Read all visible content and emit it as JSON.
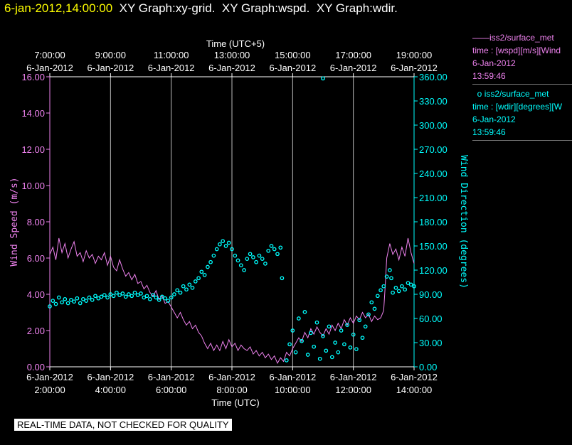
{
  "header": {
    "timestamp": "6-jan-2012,14:00:00",
    "graphs": [
      "XY Graph:xy-grid.",
      "XY Graph:wspd.",
      "XY Graph:wdir."
    ]
  },
  "legend": [
    {
      "marker": "——",
      "name": "iss2/surface_met",
      "var": "time : [wspd][m/s][Wind",
      "date": "6-Jan-2012",
      "time": "13:59:46",
      "color": "#ee82ee"
    },
    {
      "marker": "o",
      "name": "iss2/surface_met",
      "var": "time : [wdir][degrees][W",
      "date": "6-Jan-2012",
      "time": "13:59:46",
      "color": "#00ffff"
    }
  ],
  "quality_note": "REAL-TIME DATA, NOT CHECKED FOR QUALITY",
  "chart_data": {
    "type": "line",
    "top_axis": {
      "title": "Time (UTC+5)",
      "ticks": [
        {
          "time": "7:00:00",
          "date": "6-Jan-2012"
        },
        {
          "time": "9:00:00",
          "date": "6-Jan-2012"
        },
        {
          "time": "11:00:00",
          "date": "6-Jan-2012"
        },
        {
          "time": "13:00:00",
          "date": "6-Jan-2012"
        },
        {
          "time": "15:00:00",
          "date": "6-Jan-2012"
        },
        {
          "time": "17:00:00",
          "date": "6-Jan-2012"
        },
        {
          "time": "19:00:00",
          "date": "6-Jan-2012"
        }
      ]
    },
    "bottom_axis": {
      "title": "Time (UTC)",
      "xlim": [
        2,
        14
      ],
      "ticks": [
        {
          "x": 2,
          "date": "6-Jan-2012",
          "time": "2:00:00"
        },
        {
          "x": 4,
          "date": "6-Jan-2012",
          "time": "4:00:00"
        },
        {
          "x": 6,
          "date": "6-Jan-2012",
          "time": "6:00:00"
        },
        {
          "x": 8,
          "date": "6-Jan-2012",
          "time": "8:00:00"
        },
        {
          "x": 10,
          "date": "6-Jan-2012",
          "time": "10:00:00"
        },
        {
          "x": 12,
          "date": "6-Jan-2012",
          "time": "12:00:00"
        },
        {
          "x": 14,
          "date": "6-Jan-2012",
          "time": "14:00:00"
        }
      ]
    },
    "y_left": {
      "title": "Wind Speed (m/s)",
      "ylim": [
        0,
        16
      ],
      "ticks": [
        "0.00",
        "2.00",
        "4.00",
        "6.00",
        "8.00",
        "10.00",
        "12.00",
        "14.00",
        "16.00"
      ]
    },
    "y_right": {
      "title": "Wind Direction (degrees)",
      "ylim": [
        0,
        360
      ],
      "ticks": [
        "0.00",
        "30.00",
        "60.00",
        "90.00",
        "120.00",
        "150.00",
        "180.00",
        "210.00",
        "240.00",
        "270.00",
        "300.00",
        "330.00",
        "360.00"
      ]
    },
    "grid": "vertical",
    "series": [
      {
        "name": "iss2/surface_met",
        "axis": "left",
        "style": "line",
        "color": "#ee82ee",
        "points": [
          [
            2.0,
            6.2
          ],
          [
            2.1,
            6.6
          ],
          [
            2.2,
            5.9
          ],
          [
            2.3,
            7.1
          ],
          [
            2.4,
            6.3
          ],
          [
            2.5,
            6.8
          ],
          [
            2.6,
            6.0
          ],
          [
            2.7,
            6.5
          ],
          [
            2.8,
            6.9
          ],
          [
            2.9,
            6.1
          ],
          [
            3.0,
            6.3
          ],
          [
            3.1,
            5.8
          ],
          [
            3.2,
            6.4
          ],
          [
            3.3,
            6.0
          ],
          [
            3.4,
            6.2
          ],
          [
            3.5,
            5.7
          ],
          [
            3.6,
            6.1
          ],
          [
            3.7,
            5.9
          ],
          [
            3.8,
            6.3
          ],
          [
            3.9,
            5.6
          ],
          [
            4.0,
            6.1
          ],
          [
            4.1,
            5.5
          ],
          [
            4.2,
            5.3
          ],
          [
            4.3,
            5.9
          ],
          [
            4.4,
            5.4
          ],
          [
            4.5,
            5.0
          ],
          [
            4.6,
            5.2
          ],
          [
            4.7,
            4.8
          ],
          [
            4.8,
            5.1
          ],
          [
            4.9,
            4.6
          ],
          [
            5.0,
            4.7
          ],
          [
            5.1,
            4.3
          ],
          [
            5.2,
            4.5
          ],
          [
            5.3,
            4.1
          ],
          [
            5.4,
            3.9
          ],
          [
            5.5,
            4.2
          ],
          [
            5.6,
            3.7
          ],
          [
            5.7,
            3.9
          ],
          [
            5.8,
            3.5
          ],
          [
            5.9,
            3.6
          ],
          [
            6.0,
            3.3
          ],
          [
            6.1,
            3.0
          ],
          [
            6.2,
            2.7
          ],
          [
            6.3,
            3.0
          ],
          [
            6.4,
            2.6
          ],
          [
            6.5,
            2.3
          ],
          [
            6.6,
            2.5
          ],
          [
            6.7,
            2.1
          ],
          [
            6.8,
            2.3
          ],
          [
            6.9,
            1.9
          ],
          [
            7.0,
            1.7
          ],
          [
            7.1,
            1.3
          ],
          [
            7.2,
            1.0
          ],
          [
            7.3,
            1.3
          ],
          [
            7.4,
            0.9
          ],
          [
            7.5,
            1.2
          ],
          [
            7.6,
            0.9
          ],
          [
            7.7,
            1.4
          ],
          [
            7.8,
            1.0
          ],
          [
            7.9,
            1.5
          ],
          [
            8.0,
            1.1
          ],
          [
            8.1,
            1.3
          ],
          [
            8.2,
            0.9
          ],
          [
            8.3,
            1.2
          ],
          [
            8.4,
            1.0
          ],
          [
            8.5,
            0.9
          ],
          [
            8.6,
            1.1
          ],
          [
            8.7,
            0.7
          ],
          [
            8.8,
            0.9
          ],
          [
            8.9,
            0.6
          ],
          [
            9.0,
            0.8
          ],
          [
            9.1,
            0.5
          ],
          [
            9.2,
            0.7
          ],
          [
            9.3,
            0.4
          ],
          [
            9.4,
            0.6
          ],
          [
            9.5,
            0.2
          ],
          [
            9.6,
            0.5
          ],
          [
            9.7,
            0.3
          ],
          [
            9.8,
            0.8
          ],
          [
            9.9,
            0.6
          ],
          [
            10.0,
            1.0
          ],
          [
            10.1,
            1.3
          ],
          [
            10.2,
            1.6
          ],
          [
            10.3,
            1.4
          ],
          [
            10.4,
            1.9
          ],
          [
            10.5,
            1.6
          ],
          [
            10.6,
            2.1
          ],
          [
            10.7,
            1.8
          ],
          [
            10.8,
            2.2
          ],
          [
            10.9,
            1.9
          ],
          [
            11.0,
            1.7
          ],
          [
            11.1,
            2.1
          ],
          [
            11.2,
            1.8
          ],
          [
            11.3,
            2.3
          ],
          [
            11.4,
            2.0
          ],
          [
            11.5,
            2.4
          ],
          [
            11.6,
            2.1
          ],
          [
            11.7,
            2.6
          ],
          [
            11.8,
            2.3
          ],
          [
            11.9,
            2.7
          ],
          [
            12.0,
            2.4
          ],
          [
            12.1,
            2.8
          ],
          [
            12.2,
            2.6
          ],
          [
            12.3,
            3.0
          ],
          [
            12.4,
            2.7
          ],
          [
            12.5,
            2.9
          ],
          [
            12.6,
            2.5
          ],
          [
            12.7,
            2.8
          ],
          [
            12.8,
            2.6
          ],
          [
            12.9,
            2.7
          ],
          [
            13.0,
            3.1
          ],
          [
            13.05,
            4.5
          ],
          [
            13.1,
            6.0
          ],
          [
            13.2,
            6.8
          ],
          [
            13.3,
            6.2
          ],
          [
            13.4,
            6.5
          ],
          [
            13.5,
            5.9
          ],
          [
            13.6,
            6.6
          ],
          [
            13.7,
            6.1
          ],
          [
            13.8,
            7.1
          ],
          [
            13.9,
            6.3
          ],
          [
            14.0,
            5.7
          ]
        ]
      },
      {
        "name": "iss2/surface_met",
        "axis": "right",
        "style": "scatter",
        "color": "#00ffff",
        "points": [
          [
            2.0,
            75
          ],
          [
            2.1,
            82
          ],
          [
            2.2,
            78
          ],
          [
            2.3,
            86
          ],
          [
            2.4,
            80
          ],
          [
            2.5,
            84
          ],
          [
            2.6,
            79
          ],
          [
            2.7,
            83
          ],
          [
            2.8,
            81
          ],
          [
            2.9,
            85
          ],
          [
            3.0,
            79
          ],
          [
            3.1,
            84
          ],
          [
            3.2,
            82
          ],
          [
            3.3,
            86
          ],
          [
            3.4,
            83
          ],
          [
            3.5,
            88
          ],
          [
            3.6,
            85
          ],
          [
            3.7,
            87
          ],
          [
            3.8,
            89
          ],
          [
            3.9,
            86
          ],
          [
            4.0,
            90
          ],
          [
            4.1,
            88
          ],
          [
            4.2,
            92
          ],
          [
            4.3,
            89
          ],
          [
            4.4,
            91
          ],
          [
            4.5,
            87
          ],
          [
            4.6,
            90
          ],
          [
            4.7,
            88
          ],
          [
            4.8,
            92
          ],
          [
            4.9,
            89
          ],
          [
            5.0,
            91
          ],
          [
            5.1,
            86
          ],
          [
            5.2,
            88
          ],
          [
            5.3,
            84
          ],
          [
            5.4,
            89
          ],
          [
            5.5,
            86
          ],
          [
            5.6,
            83
          ],
          [
            5.7,
            87
          ],
          [
            5.8,
            85
          ],
          [
            5.9,
            82
          ],
          [
            6.0,
            86
          ],
          [
            6.1,
            90
          ],
          [
            6.2,
            95
          ],
          [
            6.3,
            92
          ],
          [
            6.4,
            100
          ],
          [
            6.5,
            96
          ],
          [
            6.6,
            102
          ],
          [
            6.7,
            98
          ],
          [
            6.8,
            106
          ],
          [
            6.9,
            110
          ],
          [
            7.0,
            118
          ],
          [
            7.1,
            114
          ],
          [
            7.2,
            124
          ],
          [
            7.3,
            130
          ],
          [
            7.4,
            138
          ],
          [
            7.5,
            146
          ],
          [
            7.6,
            152
          ],
          [
            7.7,
            156
          ],
          [
            7.8,
            150
          ],
          [
            7.9,
            154
          ],
          [
            8.0,
            146
          ],
          [
            8.1,
            138
          ],
          [
            8.2,
            132
          ],
          [
            8.3,
            126
          ],
          [
            8.4,
            120
          ],
          [
            8.5,
            134
          ],
          [
            8.6,
            140
          ],
          [
            8.7,
            136
          ],
          [
            8.8,
            130
          ],
          [
            8.9,
            138
          ],
          [
            9.0,
            134
          ],
          [
            9.1,
            128
          ],
          [
            9.2,
            144
          ],
          [
            9.3,
            150
          ],
          [
            9.4,
            146
          ],
          [
            9.5,
            140
          ],
          [
            9.6,
            148
          ],
          [
            9.65,
            110
          ],
          [
            9.8,
            8
          ],
          [
            9.9,
            28
          ],
          [
            10.0,
            45
          ],
          [
            10.1,
            18
          ],
          [
            10.2,
            60
          ],
          [
            10.3,
            32
          ],
          [
            10.4,
            68
          ],
          [
            10.5,
            15
          ],
          [
            10.6,
            42
          ],
          [
            10.7,
            25
          ],
          [
            10.8,
            55
          ],
          [
            10.9,
            10
          ],
          [
            11.0,
            38
          ],
          [
            11.1,
            20
          ],
          [
            11.2,
            50
          ],
          [
            11.3,
            12
          ],
          [
            11.4,
            30
          ],
          [
            11.5,
            18
          ],
          [
            11.6,
            45
          ],
          [
            11.7,
            28
          ],
          [
            11.8,
            52
          ],
          [
            11.9,
            24
          ],
          [
            12.0,
            40
          ],
          [
            12.1,
            22
          ],
          [
            12.2,
            58
          ],
          [
            12.3,
            36
          ],
          [
            12.4,
            50
          ],
          [
            12.5,
            65
          ],
          [
            12.6,
            80
          ],
          [
            12.7,
            72
          ],
          [
            12.8,
            88
          ],
          [
            12.9,
            95
          ],
          [
            13.0,
            100
          ],
          [
            13.1,
            112
          ],
          [
            13.2,
            120
          ],
          [
            13.25,
            110
          ],
          [
            13.3,
            92
          ],
          [
            13.4,
            98
          ],
          [
            13.5,
            94
          ],
          [
            13.6,
            100
          ],
          [
            13.7,
            96
          ],
          [
            13.8,
            104
          ],
          [
            13.9,
            102
          ],
          [
            14.0,
            100
          ],
          [
            11.0,
            358
          ]
        ]
      }
    ]
  }
}
